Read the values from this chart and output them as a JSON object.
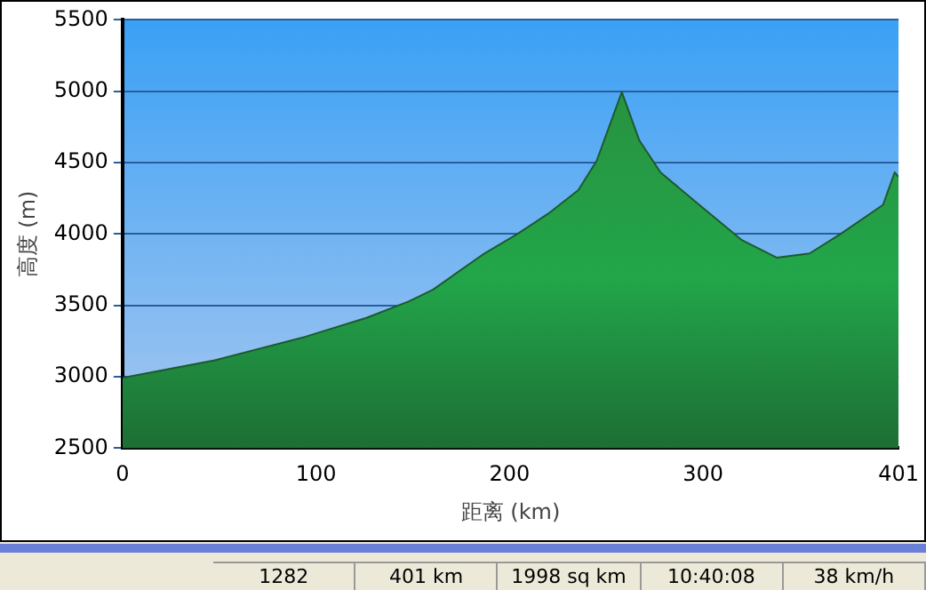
{
  "chart_data": {
    "type": "area",
    "xlabel": "距离 (km)",
    "ylabel": "高度 (m)",
    "x": [
      0,
      47.6,
      94.6,
      126,
      148,
      157,
      160.5,
      186,
      204,
      220,
      235.5,
      245,
      258,
      267,
      278,
      298,
      320,
      338,
      355,
      371,
      393,
      399,
      401
    ],
    "series": [
      {
        "color": "#22a64a",
        "values": [
          2992,
          3116,
          3281,
          3413,
          3529,
          3588,
          3611,
          3855,
          4000,
          4143,
          4308,
          4513,
          4995,
          4658,
          4432,
          4205,
          3958,
          3835,
          3864,
          4000,
          4205,
          4432,
          4400
        ]
      }
    ],
    "xlim": [
      0,
      401
    ],
    "xticks": [
      0,
      100,
      200,
      300,
      401
    ],
    "ylim": [
      2500,
      5500
    ],
    "yticks": [
      2500,
      3000,
      3500,
      4000,
      4500,
      5000,
      5500
    ],
    "grid": "y",
    "legend": false,
    "marker": "none",
    "annotations": [
      "1282",
      "401 km",
      "1998 sq km",
      "10:40:08",
      "38 km/h"
    ]
  }
}
